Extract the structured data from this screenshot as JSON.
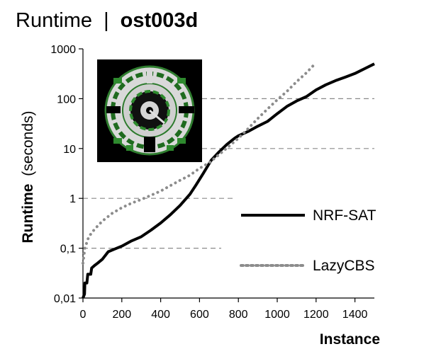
{
  "chart_data": {
    "type": "line",
    "title_prefix": "Runtime",
    "title_separator": "|",
    "title_bold": "ost003d",
    "xlabel": "Instance",
    "ylabel_bold": "Runtime",
    "ylabel_rest": "(seconds)",
    "xlim": [
      0,
      1500
    ],
    "ylim": [
      0.01,
      1000
    ],
    "yscale": "log",
    "xticks": [
      0,
      200,
      400,
      600,
      800,
      1000,
      1200,
      1400
    ],
    "xtick_labels": [
      "0",
      "200",
      "400",
      "600",
      "800",
      "1000",
      "1200",
      "1400"
    ],
    "yticks": [
      0.01,
      0.1,
      1,
      10,
      100,
      1000
    ],
    "ytick_labels": [
      "0,01",
      "0,1",
      "1",
      "10",
      "100",
      "1000"
    ],
    "grid": "horizontal dashed",
    "legend_placement": "bottom-right",
    "inset_image": "ost003d map thumbnail",
    "series": [
      {
        "name": "NRF-SAT",
        "style": "solid",
        "color": "#000000",
        "points": [
          [
            0,
            0.01
          ],
          [
            8,
            0.012
          ],
          [
            10,
            0.02
          ],
          [
            20,
            0.02
          ],
          [
            25,
            0.03
          ],
          [
            40,
            0.03
          ],
          [
            45,
            0.04
          ],
          [
            60,
            0.045
          ],
          [
            75,
            0.05
          ],
          [
            100,
            0.06
          ],
          [
            130,
            0.085
          ],
          [
            160,
            0.095
          ],
          [
            200,
            0.11
          ],
          [
            250,
            0.14
          ],
          [
            300,
            0.17
          ],
          [
            350,
            0.23
          ],
          [
            400,
            0.32
          ],
          [
            450,
            0.47
          ],
          [
            500,
            0.72
          ],
          [
            550,
            1.2
          ],
          [
            580,
            1.8
          ],
          [
            620,
            3.2
          ],
          [
            660,
            5.8
          ],
          [
            700,
            8.5
          ],
          [
            740,
            12
          ],
          [
            780,
            16
          ],
          [
            800,
            18
          ],
          [
            850,
            22
          ],
          [
            900,
            28
          ],
          [
            950,
            35
          ],
          [
            1000,
            50
          ],
          [
            1050,
            70
          ],
          [
            1100,
            90
          ],
          [
            1150,
            110
          ],
          [
            1200,
            150
          ],
          [
            1250,
            190
          ],
          [
            1300,
            230
          ],
          [
            1350,
            270
          ],
          [
            1400,
            320
          ],
          [
            1450,
            400
          ],
          [
            1500,
            500
          ]
        ]
      },
      {
        "name": "LazyCBS",
        "style": "dotted",
        "color": "#8c8c8c",
        "points": [
          [
            0,
            0.05
          ],
          [
            10,
            0.1
          ],
          [
            30,
            0.17
          ],
          [
            60,
            0.24
          ],
          [
            100,
            0.35
          ],
          [
            150,
            0.5
          ],
          [
            200,
            0.65
          ],
          [
            250,
            0.8
          ],
          [
            300,
            0.95
          ],
          [
            350,
            1.15
          ],
          [
            400,
            1.4
          ],
          [
            450,
            1.8
          ],
          [
            500,
            2.3
          ],
          [
            550,
            2.9
          ],
          [
            600,
            4.0
          ],
          [
            650,
            5.2
          ],
          [
            700,
            7.5
          ],
          [
            750,
            11
          ],
          [
            800,
            16
          ],
          [
            850,
            25
          ],
          [
            900,
            40
          ],
          [
            950,
            62
          ],
          [
            1000,
            95
          ],
          [
            1050,
            140
          ],
          [
            1100,
            220
          ],
          [
            1150,
            330
          ],
          [
            1190,
            480
          ]
        ]
      }
    ]
  }
}
